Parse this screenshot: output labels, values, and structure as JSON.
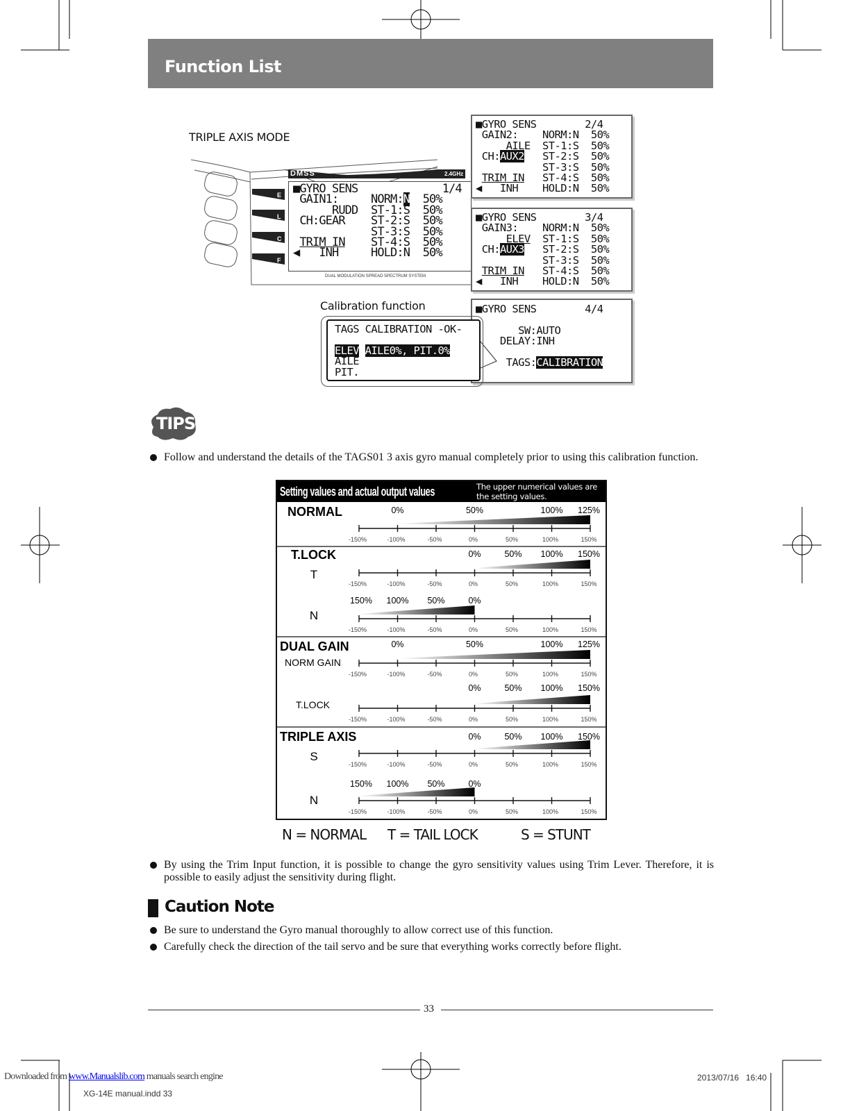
{
  "header": {
    "title": "Function List"
  },
  "figure": {
    "mode_caption": "TRIPLE AXIS MODE",
    "calibration_caption": "Calibration function",
    "transmitter": {
      "logo": "DMSS",
      "band": "2.4GHz",
      "footer": "DUAL MODULATION SPREAD SPECTRUM SYSTEM",
      "side_keys": [
        "E",
        "L",
        "C",
        "F"
      ]
    },
    "screens": [
      {
        "name": "gyro-sens-page-1",
        "lines": [
          [
            {
              "t": "■GYRO SENS             1/4"
            }
          ],
          [
            {
              "t": " GAIN1:     NORM:"
            },
            {
              "t": "N",
              "inv": true
            },
            {
              "t": "  50%"
            }
          ],
          [
            {
              "t": "      RUDD  ST-1:S  50%"
            }
          ],
          [
            {
              "t": " CH:GEAR    ST-2:S  50%"
            }
          ],
          [
            {
              "t": "            ST-3:S  50%"
            }
          ],
          [
            {
              "t": " "
            },
            {
              "t": "TRIM IN",
              "u": true
            },
            {
              "t": "    ST-4:S  50%"
            }
          ],
          [
            {
              "t": "◀   INH     HOLD:N  50%"
            }
          ]
        ]
      },
      {
        "name": "gyro-sens-page-2",
        "lines": [
          [
            {
              "t": "■GYRO SENS        2/4"
            }
          ],
          [
            {
              "t": " GAIN2:    NORM:N  50%"
            }
          ],
          [
            {
              "t": "     AILE  ST-1:S  50%"
            }
          ],
          [
            {
              "t": " CH:"
            },
            {
              "t": "AUX2",
              "inv": true
            },
            {
              "t": "   ST-2:S  50%"
            }
          ],
          [
            {
              "t": "           ST-3:S  50%"
            }
          ],
          [
            {
              "t": " "
            },
            {
              "t": "TRIM IN",
              "u": true
            },
            {
              "t": "   ST-4:S  50%"
            }
          ],
          [
            {
              "t": "◀   INH    HOLD:N  50%"
            }
          ]
        ]
      },
      {
        "name": "gyro-sens-page-3",
        "lines": [
          [
            {
              "t": "■GYRO SENS        3/4"
            }
          ],
          [
            {
              "t": " GAIN3:    NORM:N  50%"
            }
          ],
          [
            {
              "t": "     "
            },
            {
              "t": "ELEV",
              "u": true
            },
            {
              "t": "  ST-1:S  50%"
            }
          ],
          [
            {
              "t": " CH:"
            },
            {
              "t": "AUX3",
              "inv": true
            },
            {
              "t": "   ST-2:S  50%"
            }
          ],
          [
            {
              "t": "           ST-3:S  50%"
            }
          ],
          [
            {
              "t": " "
            },
            {
              "t": "TRIM IN",
              "u": true
            },
            {
              "t": "   ST-4:S  50%"
            }
          ],
          [
            {
              "t": "◀   INH    HOLD:N  50%"
            }
          ]
        ]
      },
      {
        "name": "gyro-sens-page-4",
        "lines": [
          [
            {
              "t": "■GYRO SENS        4/4"
            }
          ],
          [
            {
              "t": ""
            }
          ],
          [
            {
              "t": "       SW:AUTO"
            }
          ],
          [
            {
              "t": "    DELAY:INH"
            }
          ],
          [
            {
              "t": ""
            }
          ],
          [
            {
              "t": "     TAGS:"
            },
            {
              "t": "CALIBRATION",
              "inv": true
            }
          ]
        ]
      },
      {
        "name": "tags-calibration-popup",
        "lines": [
          [
            {
              "t": "TAGS CALIBRATION -OK-"
            }
          ],
          [
            {
              "t": ""
            }
          ],
          [
            {
              "t": "ELEV",
              "inv": true
            },
            {
              "t": " "
            },
            {
              "t": "AILE0%, PIT.0%",
              "inv": true
            }
          ],
          [
            {
              "t": "AILE"
            }
          ],
          [
            {
              "t": "PIT."
            }
          ]
        ]
      }
    ]
  },
  "tips": {
    "badge": "TIPS",
    "bullets": [
      "Follow and understand the details of the TAGS01 3 axis gyro manual completely prior to using this calibration function.",
      "By using the Trim Input function, it is possible to change the gyro sensitivity values using Trim Lever. Therefore, it is possible to easily adjust the sensitivity during flight."
    ]
  },
  "chart_data": {
    "type": "table",
    "title": "Setting values and actual output values",
    "note": "The upper numerical values are the setting values.",
    "axis_ticks": [
      -150,
      -100,
      -50,
      0,
      50,
      100,
      150
    ],
    "axis_tick_labels": [
      "-150%",
      "-100%",
      "-50%",
      "0%",
      "50%",
      "100%",
      "150%"
    ],
    "sections": [
      {
        "title": "NORMAL",
        "rows": [
          {
            "label": "",
            "settings": [
              {
                "text": "0%",
                "output": -100
              },
              {
                "text": "50%",
                "output": 0
              },
              {
                "text": "100%",
                "output": 100
              },
              {
                "text": "125%",
                "output": 150
              }
            ],
            "range": [
              -100,
              150
            ]
          }
        ]
      },
      {
        "title": "T.LOCK",
        "rows": [
          {
            "label": "T",
            "settings": [
              {
                "text": "0%",
                "output": 0
              },
              {
                "text": "50%",
                "output": 50
              },
              {
                "text": "100%",
                "output": 100
              },
              {
                "text": "150%",
                "output": 150
              }
            ],
            "range": [
              0,
              150
            ]
          },
          {
            "label": "N",
            "settings": [
              {
                "text": "150%",
                "output": -150
              },
              {
                "text": "100%",
                "output": -100
              },
              {
                "text": "50%",
                "output": -50
              },
              {
                "text": "0%",
                "output": 0
              }
            ],
            "range": [
              -150,
              0
            ]
          }
        ]
      },
      {
        "title": "DUAL GAIN",
        "rows": [
          {
            "label": "NORM GAIN",
            "settings": [
              {
                "text": "0%",
                "output": -100
              },
              {
                "text": "50%",
                "output": 0
              },
              {
                "text": "100%",
                "output": 100
              },
              {
                "text": "125%",
                "output": 150
              }
            ],
            "range": [
              -100,
              150
            ]
          },
          {
            "label": "T.LOCK",
            "settings": [
              {
                "text": "0%",
                "output": 0
              },
              {
                "text": "50%",
                "output": 50
              },
              {
                "text": "100%",
                "output": 100
              },
              {
                "text": "150%",
                "output": 150
              }
            ],
            "range": [
              0,
              150
            ]
          }
        ]
      },
      {
        "title": "TRIPLE AXIS",
        "rows": [
          {
            "label": "S",
            "settings": [
              {
                "text": "0%",
                "output": 0
              },
              {
                "text": "50%",
                "output": 50
              },
              {
                "text": "100%",
                "output": 100
              },
              {
                "text": "150%",
                "output": 150
              }
            ],
            "range": [
              0,
              150
            ]
          },
          {
            "label": "N",
            "settings": [
              {
                "text": "150%",
                "output": -150
              },
              {
                "text": "100%",
                "output": -100
              },
              {
                "text": "50%",
                "output": -50
              },
              {
                "text": "0%",
                "output": 0
              }
            ],
            "range": [
              -150,
              0
            ]
          }
        ]
      }
    ]
  },
  "legend": {
    "n": "N = NORMAL",
    "t": "T = TAIL LOCK",
    "s": "S = STUNT"
  },
  "caution": {
    "title": "Caution Note",
    "bullets": [
      "Be sure to understand the Gyro manual thoroughly to allow correct use of this function.",
      "Carefully check the direction of the tail servo and be sure that everything works correctly before flight."
    ]
  },
  "page_number": "33",
  "footer": {
    "download": "Downloaded from",
    "site": "www.Manualslib.com",
    "engine": "manuals search engine",
    "file": "XG-14E manual.indd 33",
    "timestamp": "2013/07/16   16:40"
  }
}
